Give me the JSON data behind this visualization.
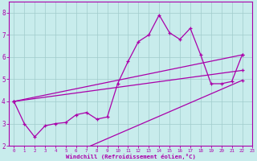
{
  "xlabel": "Windchill (Refroidissement éolien,°C)",
  "xlim": [
    -0.5,
    23
  ],
  "ylim": [
    2.0,
    8.5
  ],
  "yticks": [
    2,
    3,
    4,
    5,
    6,
    7,
    8
  ],
  "xticks": [
    0,
    1,
    2,
    3,
    4,
    5,
    6,
    7,
    8,
    9,
    10,
    11,
    12,
    13,
    14,
    15,
    16,
    17,
    18,
    19,
    20,
    21,
    22,
    23
  ],
  "bg_color": "#c8ecec",
  "line_color": "#aa00aa",
  "grid_color": "#a0cccc",
  "figsize": [
    3.2,
    2.0
  ],
  "dpi": 100,
  "main_line": {
    "x": [
      0,
      1,
      2,
      3,
      4,
      5,
      6,
      7,
      8,
      9,
      10,
      11,
      12,
      13,
      14,
      15,
      16,
      17,
      18,
      19,
      20,
      21,
      22
    ],
    "y": [
      4.0,
      3.0,
      2.4,
      2.9,
      3.0,
      3.05,
      3.4,
      3.5,
      3.2,
      3.3,
      4.8,
      5.8,
      6.7,
      7.0,
      7.9,
      7.1,
      6.8,
      7.3,
      6.1,
      4.8,
      4.8,
      4.9,
      6.1
    ]
  },
  "straight_lines": [
    {
      "x": [
        0,
        22
      ],
      "y": [
        4.0,
        6.1
      ]
    },
    {
      "x": [
        0,
        22
      ],
      "y": [
        4.0,
        5.4
      ]
    },
    {
      "x": [
        0,
        22
      ],
      "y": [
        0.5,
        4.95
      ]
    }
  ]
}
